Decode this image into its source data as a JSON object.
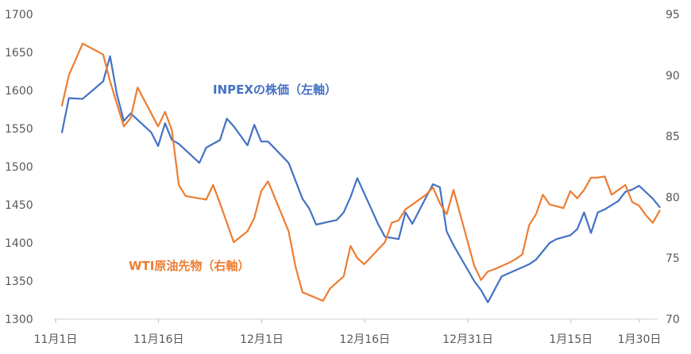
{
  "chart_data": {
    "type": "line",
    "x_tick_labels": [
      "11月1日",
      "11月16日",
      "12月1日",
      "12月16日",
      "12月31日",
      "1月15日",
      "1月30日"
    ],
    "ylim_left": [
      1300,
      1700
    ],
    "yticks_left": [
      1300,
      1350,
      1400,
      1450,
      1500,
      1550,
      1600,
      1650,
      1700
    ],
    "ylim_right": [
      70,
      95
    ],
    "yticks_right": [
      70,
      75,
      80,
      85,
      90,
      95
    ],
    "grid": false,
    "series": [
      {
        "name": "INPEXの株価（左軸）",
        "axis": "left",
        "color": "#4472C4",
        "x": [
          1,
          2,
          4,
          7,
          8,
          9,
          10,
          11,
          14,
          15,
          16,
          17,
          18,
          21,
          22,
          24,
          25,
          26,
          28,
          29,
          30,
          31,
          34,
          36,
          37,
          38,
          40,
          41,
          42,
          43,
          44,
          46,
          47,
          48,
          50,
          51,
          52,
          54,
          55,
          56,
          57,
          58,
          61,
          62,
          63,
          65,
          66,
          67,
          68,
          69,
          70,
          72,
          73,
          75,
          76,
          77,
          78,
          79,
          80,
          82,
          83,
          84,
          85,
          87,
          88
        ],
        "values": [
          1545,
          1590,
          1589,
          1612,
          1645,
          1595,
          1560,
          1570,
          1545,
          1527,
          1557,
          1535,
          1530,
          1505,
          1525,
          1535,
          1563,
          1553,
          1528,
          1555,
          1533,
          1533,
          1505,
          1458,
          1445,
          1424,
          1428,
          1430,
          1440,
          1460,
          1485,
          1445,
          1425,
          1408,
          1405,
          1440,
          1425,
          1460,
          1477,
          1473,
          1415,
          1397,
          1350,
          1338,
          1322,
          1356,
          1360,
          1364,
          1368,
          1372,
          1378,
          1400,
          1405,
          1410,
          1418,
          1440,
          1413,
          1440,
          1444,
          1455,
          1467,
          1470,
          1475,
          1458,
          1447
        ]
      },
      {
        "name": "WTI原油先物（右軸）",
        "axis": "right",
        "color": "#ED7D31",
        "x": [
          1,
          2,
          4,
          7,
          8,
          10,
          11,
          12,
          15,
          16,
          17,
          18,
          19,
          22,
          23,
          24,
          26,
          28,
          29,
          30,
          31,
          34,
          35,
          36,
          39,
          40,
          42,
          43,
          44,
          45,
          48,
          49,
          50,
          51,
          52,
          54,
          55,
          56,
          57,
          58,
          61,
          62,
          63,
          64,
          66,
          67,
          68,
          69,
          70,
          71,
          72,
          74,
          75,
          76,
          77,
          78,
          79,
          80,
          81,
          83,
          84,
          85,
          86,
          87,
          88
        ],
        "values": [
          87.5,
          90,
          92.6,
          91.7,
          89.5,
          85.8,
          86.5,
          89,
          85.8,
          87,
          85.5,
          81,
          80.1,
          79.8,
          81,
          79.5,
          76.3,
          77.2,
          78.3,
          80.5,
          81.3,
          77.2,
          74.3,
          72.2,
          71.5,
          72.5,
          73.5,
          76,
          75,
          74.5,
          76.3,
          77.9,
          78.1,
          79,
          79.4,
          80.2,
          80.8,
          79.5,
          78.6,
          80.6,
          74.4,
          73.2,
          73.9,
          74.1,
          74.6,
          74.9,
          75.3,
          77.7,
          78.6,
          80.2,
          79.4,
          79.1,
          80.5,
          79.9,
          80.6,
          81.6,
          81.6,
          81.7,
          80.2,
          81,
          79.6,
          79.3,
          78.5,
          77.9,
          78.9
        ]
      }
    ],
    "annotations": {
      "inpex": "INPEXの株価（左軸）",
      "wti": "WTI原油先物（右軸）"
    }
  }
}
